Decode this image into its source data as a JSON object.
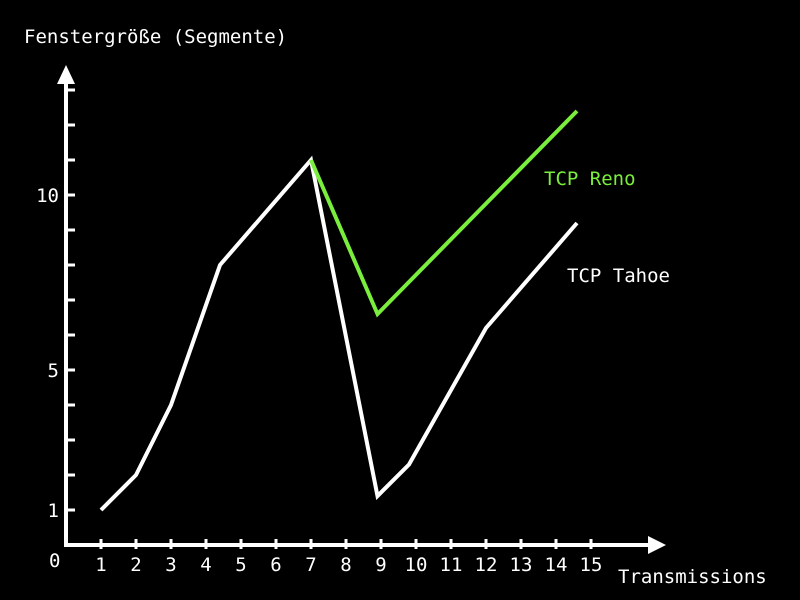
{
  "chart_data": {
    "type": "line",
    "title": "",
    "ylabel": "Fenstergröße (Segmente)",
    "xlabel": "Transmissions",
    "origin_label": "0",
    "xlim": [
      0,
      16
    ],
    "ylim": [
      0,
      14
    ],
    "x_ticks": [
      1,
      2,
      3,
      4,
      5,
      6,
      7,
      8,
      9,
      10,
      11,
      12,
      13,
      14,
      15
    ],
    "y_ticks": [
      1,
      2,
      3,
      4,
      5,
      6,
      7,
      8,
      9,
      10,
      11,
      12,
      13
    ],
    "y_tick_labels": [
      {
        "value": 1,
        "label": "1"
      },
      {
        "value": 5,
        "label": "5"
      },
      {
        "value": 10,
        "label": "10"
      }
    ],
    "grid": false,
    "legend": "inline labels at line ends",
    "series": [
      {
        "name": "TCP Tahoe",
        "color": "#ffffff",
        "points": [
          [
            1,
            1
          ],
          [
            2,
            2
          ],
          [
            3,
            4
          ],
          [
            4.4,
            8
          ],
          [
            7,
            11
          ],
          [
            8.9,
            1.4
          ],
          [
            9.8,
            2.3
          ],
          [
            12,
            6.2
          ],
          [
            14.6,
            9.2
          ]
        ]
      },
      {
        "name": "TCP Reno",
        "color": "#7aee3c",
        "points": [
          [
            7,
            11
          ],
          [
            8.9,
            6.6
          ],
          [
            14.6,
            12.4
          ]
        ]
      }
    ]
  }
}
